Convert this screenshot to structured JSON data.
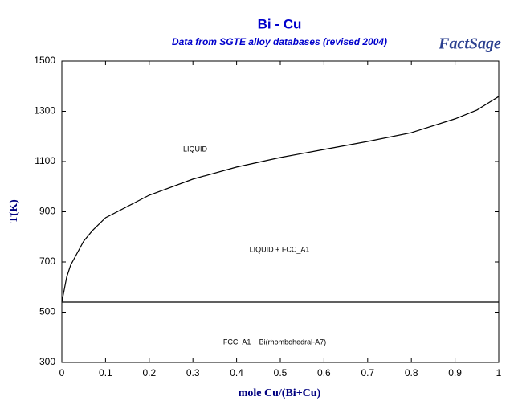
{
  "chart_data": {
    "type": "line",
    "title": "Bi - Cu",
    "subtitle": "Data from SGTE alloy databases (revised 2004)",
    "logo": "FactSage",
    "xlabel": "mole Cu/(Bi+Cu)",
    "ylabel": "T(K)",
    "xlim": [
      0,
      1
    ],
    "ylim": [
      300,
      1500
    ],
    "xticks": [
      0,
      0.1,
      0.2,
      0.3,
      0.4,
      0.5,
      0.6,
      0.7,
      0.8,
      0.9,
      1
    ],
    "yticks": [
      300,
      500,
      700,
      900,
      1100,
      1300,
      1500
    ],
    "annotations": [
      "LIQUID",
      "LIQUID + FCC_A1",
      "FCC_A1 + Bi(rhombohedral-A7)"
    ],
    "series": [
      {
        "color": "#000000",
        "x": [
          0,
          0.011,
          0.02,
          0.05,
          0.07,
          0.1,
          0.2,
          0.3,
          0.4,
          0.5,
          0.6,
          0.7,
          0.8,
          0.9,
          0.95,
          1
        ],
        "values": [
          540,
          639,
          687,
          783,
          825,
          876,
          966,
          1030,
          1078,
          1116,
          1148,
          1180,
          1215,
          1270,
          1305,
          1359
        ]
      },
      {
        "color": "#000000",
        "x": [
          0,
          1
        ],
        "values": [
          540,
          540
        ]
      }
    ]
  }
}
